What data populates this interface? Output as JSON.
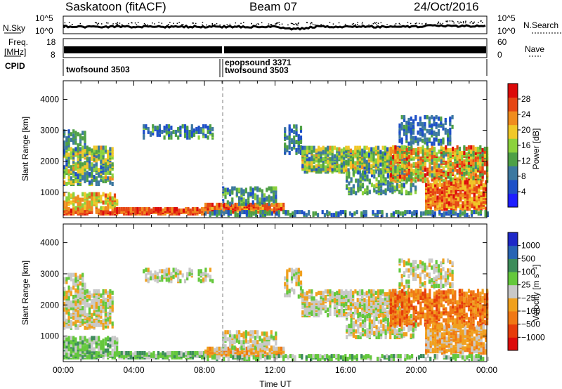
{
  "header": {
    "station": "Saskatoon (fitACF)",
    "beam": "Beam 07",
    "date": "24/Oct/2016"
  },
  "top_panels": {
    "nsky_label": "N.Sky",
    "nsky_ticks": [
      "10^5",
      "10^0"
    ],
    "nsearch_label": "N.Search",
    "nsearch_ticks": [
      "10^5",
      "10^0"
    ],
    "freq_label_1": "Freq.",
    "freq_label_2": "[MHz]",
    "freq_ticks": [
      "18",
      "8"
    ],
    "nave_label": "Nave",
    "nave_ticks": [
      "60",
      "0"
    ],
    "cpid_label": "CPID",
    "cpid_entries": [
      "twofsound 3503",
      "epopsound 3371",
      "twofsound 3503"
    ]
  },
  "chart_data": [
    {
      "type": "heatmap",
      "name": "power",
      "ylabel": "Slant Range [km]",
      "xlabel": "",
      "ylim": [
        180,
        4600
      ],
      "xlim": [
        0,
        24
      ],
      "yticks": [
        "1000",
        "2000",
        "3000",
        "4000"
      ],
      "colorbar": {
        "label": "Power [dB]",
        "ticks": [
          "4",
          "8",
          "12",
          "16",
          "20",
          "24",
          "28"
        ],
        "colors": [
          "#1e1eff",
          "#1e50c8",
          "#3c78a0",
          "#4ea046",
          "#8cd23c",
          "#f0c828",
          "#f08c1e",
          "#e64614",
          "#dc0a0a"
        ],
        "range": [
          0,
          32
        ]
      },
      "marker_time": 9.0
    },
    {
      "type": "heatmap",
      "name": "velocity",
      "ylabel": "Slant Range [km]",
      "xlabel": "Time UT",
      "ylim": [
        180,
        4600
      ],
      "xlim": [
        0,
        24
      ],
      "yticks": [
        "1000",
        "2000",
        "3000",
        "4000"
      ],
      "xticks": [
        "00:00",
        "04:00",
        "08:00",
        "12:00",
        "16:00",
        "20:00",
        "00:00"
      ],
      "colorbar": {
        "label": "Velocity [m s⁻¹]",
        "ticks": [
          "1000",
          "500",
          "100",
          "25",
          "−25",
          "−100",
          "−500",
          "−1000"
        ],
        "colors": [
          "#1e28c8",
          "#2864b4",
          "#3c8c5a",
          "#64c83c",
          "#c8c8c8",
          "#f0a01e",
          "#f07814",
          "#e63c0a",
          "#dc0a0a"
        ]
      },
      "marker_time": 9.0
    }
  ]
}
